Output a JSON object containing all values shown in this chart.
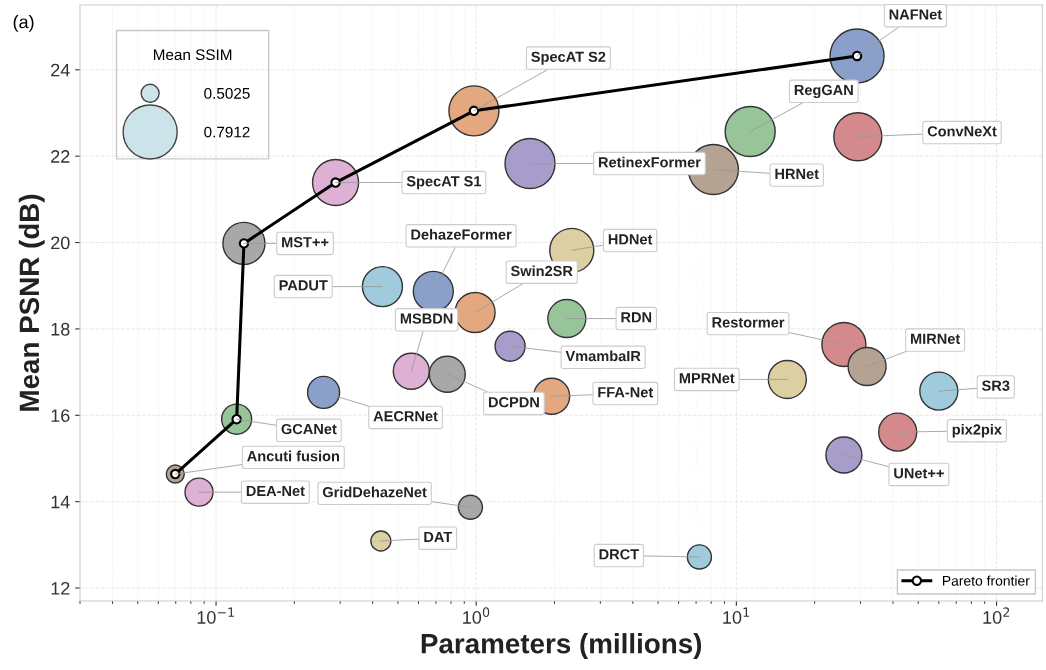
{
  "chart_data": {
    "type": "bubble",
    "xlabel": "Parameters (millions)",
    "ylabel": "Mean PSNR (dB)",
    "legend_title": "Mean SSIM",
    "size_legend": [
      {
        "value": 0.111,
        "label": "0.5025"
      },
      {
        "value": 1,
        "label": "0.7912"
      }
    ],
    "log": "x",
    "grid": true,
    "legend": "bottom right",
    "xlim": [
      0.03,
      150
    ],
    "ylim": [
      11.7,
      25.5
    ],
    "xticks": [
      {
        "value": 0.1,
        "label": "10$^{−1}$"
      },
      {
        "value": 1,
        "label": "10$^{0}$"
      },
      {
        "value": 10,
        "label": "10$^{1}$"
      },
      {
        "value": 100,
        "label": "10$^{2}$"
      }
    ],
    "yticks": [
      12,
      14,
      16,
      18,
      20,
      22,
      24
    ],
    "series": [
      {
        "x": [
          29.1,
          0.98,
          0.288,
          0.128,
          0.12,
          0.0697,
          0.086,
          1.61,
          11.3,
          29.3,
          8.16,
          2.33,
          0.436,
          0.684,
          0.99,
          2.23,
          1.35,
          0.563,
          0.774,
          0.259,
          1.95,
          25.9,
          31.8,
          15.7,
          60.0,
          41.7,
          25.9,
          0.95,
          0.43,
          7.21
        ],
        "values": [
          24.32,
          23.05,
          21.39,
          19.98,
          15.91,
          14.64,
          14.22,
          21.83,
          22.57,
          22.45,
          21.69,
          19.82,
          18.98,
          18.87,
          18.38,
          18.24,
          17.6,
          17.02,
          16.95,
          16.53,
          16.44,
          17.64,
          17.13,
          16.83,
          16.56,
          15.61,
          15.08,
          13.87,
          13.09,
          12.72
        ],
        "sizes": [
          1,
          0.857,
          0.726,
          0.605,
          0.309,
          0.111,
          0.269,
          0.857,
          0.857,
          0.79,
          0.857,
          0.664,
          0.549,
          0.549,
          0.549,
          0.495,
          0.309,
          0.444,
          0.444,
          0.351,
          0.444,
          0.664,
          0.495,
          0.495,
          0.495,
          0.495,
          0.444,
          0.198,
          0.137,
          0.198
        ],
        "colors": [
          "#8a9fc9",
          "#e4a880",
          "#deb0d4",
          "#a8a8a8",
          "#98c49a",
          "#b4a292",
          "#deb0d4",
          "#a89ccb",
          "#98c49a",
          "#d48a8c",
          "#b4a292",
          "#dccfa2",
          "#9fcbdc",
          "#8a9fc9",
          "#e4a880",
          "#98c49a",
          "#a89ccb",
          "#deb0d4",
          "#a8a8a8",
          "#8a9fc9",
          "#e4a880",
          "#d48a8c",
          "#b4a292",
          "#dccfa2",
          "#9fcbdc",
          "#d48a8c",
          "#a89ccb",
          "#a8a8a8",
          "#dccfa2",
          "#9fcbdc"
        ]
      },
      {
        "type": "line",
        "name": "Pareto frontier",
        "color": "#000000",
        "marker": "circle",
        "x": [
          0.0697,
          0.12,
          0.128,
          0.288,
          0.98,
          29.1
        ],
        "values": [
          14.64,
          15.91,
          19.98,
          21.39,
          23.05,
          24.32
        ]
      }
    ],
    "annotations": [
      "(a)",
      {
        "text": "NAFNet",
        "x": 29.1,
        "y": 24.32
      },
      {
        "text": "SpecAT S2",
        "x": 0.98,
        "y": 23.05
      },
      {
        "text": "SpecAT S1",
        "x": 0.288,
        "y": 21.39
      },
      {
        "text": "MST++",
        "x": 0.128,
        "y": 19.98
      },
      {
        "text": "GCANet",
        "x": 0.12,
        "y": 15.91
      },
      {
        "text": "Ancuti fusion",
        "x": 0.0697,
        "y": 14.64
      },
      {
        "text": "DEA-Net",
        "x": 0.086,
        "y": 14.22
      },
      {
        "text": "RetinexFormer",
        "x": 1.61,
        "y": 21.83
      },
      {
        "text": "RegGAN",
        "x": 11.3,
        "y": 22.57
      },
      {
        "text": "ConvNeXt",
        "x": 29.3,
        "y": 22.45
      },
      {
        "text": "HRNet",
        "x": 8.16,
        "y": 21.69
      },
      {
        "text": "HDNet",
        "x": 2.33,
        "y": 19.82
      },
      {
        "text": "PADUT",
        "x": 0.436,
        "y": 18.98
      },
      {
        "text": "DehazeFormer",
        "x": 0.684,
        "y": 18.87
      },
      {
        "text": "Swin2SR",
        "x": 0.99,
        "y": 18.38
      },
      {
        "text": "RDN",
        "x": 2.23,
        "y": 18.24
      },
      {
        "text": "VmambaIR",
        "x": 1.35,
        "y": 17.6
      },
      {
        "text": "MSBDN",
        "x": 0.563,
        "y": 17.02
      },
      {
        "text": "DCPDN",
        "x": 0.774,
        "y": 16.95
      },
      {
        "text": "AECRNet",
        "x": 0.259,
        "y": 16.53
      },
      {
        "text": "FFA-Net",
        "x": 1.95,
        "y": 16.44
      },
      {
        "text": "Restormer",
        "x": 25.9,
        "y": 17.64
      },
      {
        "text": "MIRNet",
        "x": 31.8,
        "y": 17.13
      },
      {
        "text": "MPRNet",
        "x": 15.7,
        "y": 16.83
      },
      {
        "text": "SR3",
        "x": 60.0,
        "y": 16.56
      },
      {
        "text": "pix2pix",
        "x": 41.7,
        "y": 15.61
      },
      {
        "text": "UNet++",
        "x": 25.9,
        "y": 15.08
      },
      {
        "text": "GridDehazeNet",
        "x": 0.95,
        "y": 13.87
      },
      {
        "text": "DAT",
        "x": 0.43,
        "y": 13.09
      },
      {
        "text": "DRCT",
        "x": 7.21,
        "y": 12.72
      }
    ]
  }
}
